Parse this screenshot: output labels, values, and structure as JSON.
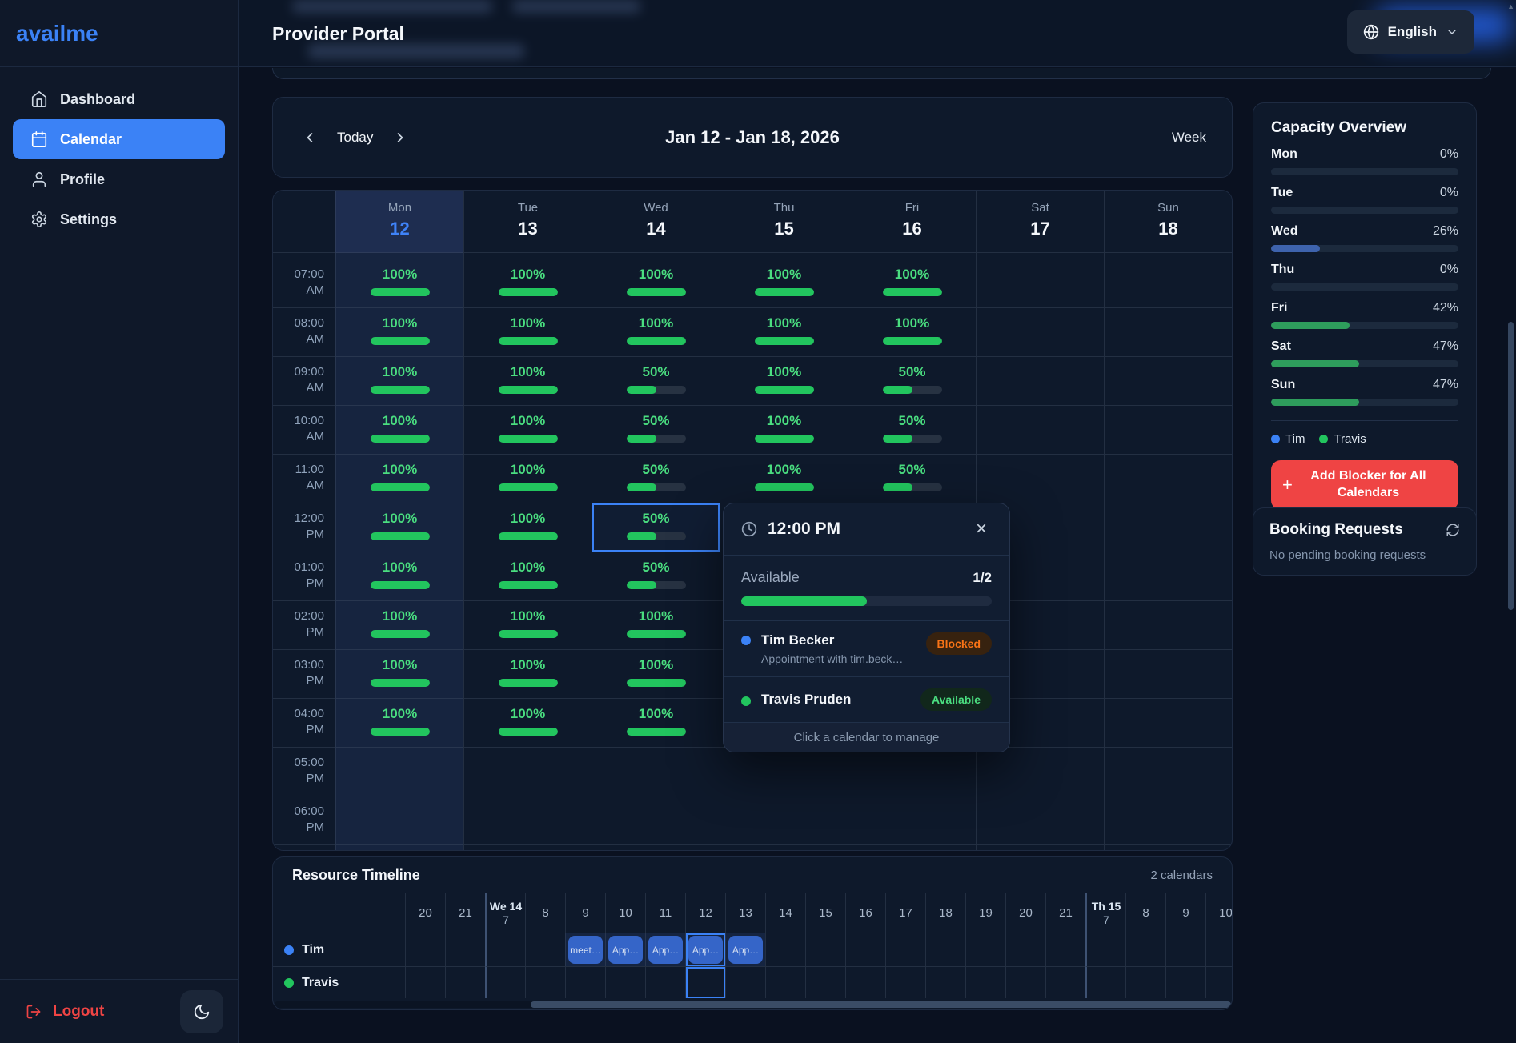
{
  "sidebar": {
    "logo": "availme",
    "items": [
      {
        "label": "Dashboard",
        "icon": "home",
        "active": false
      },
      {
        "label": "Calendar",
        "icon": "calendar",
        "active": true
      },
      {
        "label": "Profile",
        "icon": "user",
        "active": false
      },
      {
        "label": "Settings",
        "icon": "gear",
        "active": false
      }
    ],
    "logout_label": "Logout"
  },
  "header": {
    "title": "Provider Portal",
    "language": "English"
  },
  "toolbar": {
    "today_label": "Today",
    "range_title": "Jan 12 - Jan 18, 2026",
    "view_label": "Week"
  },
  "week": {
    "days": [
      {
        "name": "Mon",
        "num": "12",
        "today": true
      },
      {
        "name": "Tue",
        "num": "13",
        "today": false
      },
      {
        "name": "Wed",
        "num": "14",
        "today": false
      },
      {
        "name": "Thu",
        "num": "15",
        "today": false
      },
      {
        "name": "Fri",
        "num": "16",
        "today": false
      },
      {
        "name": "Sat",
        "num": "17",
        "today": false
      },
      {
        "name": "Sun",
        "num": "18",
        "today": false
      }
    ],
    "rows": [
      {
        "time": "07:00 AM",
        "values": [
          100,
          100,
          100,
          100,
          100,
          null,
          null
        ]
      },
      {
        "time": "08:00 AM",
        "values": [
          100,
          100,
          100,
          100,
          100,
          null,
          null
        ]
      },
      {
        "time": "09:00 AM",
        "values": [
          100,
          100,
          50,
          100,
          50,
          null,
          null
        ]
      },
      {
        "time": "10:00 AM",
        "values": [
          100,
          100,
          50,
          100,
          50,
          null,
          null
        ]
      },
      {
        "time": "11:00 AM",
        "values": [
          100,
          100,
          50,
          100,
          50,
          null,
          null
        ]
      },
      {
        "time": "12:00 PM",
        "values": [
          100,
          100,
          50,
          null,
          null,
          null,
          null
        ]
      },
      {
        "time": "01:00 PM",
        "values": [
          100,
          100,
          50,
          null,
          null,
          null,
          null
        ]
      },
      {
        "time": "02:00 PM",
        "values": [
          100,
          100,
          100,
          null,
          null,
          null,
          null
        ]
      },
      {
        "time": "03:00 PM",
        "values": [
          100,
          100,
          100,
          null,
          null,
          null,
          null
        ]
      },
      {
        "time": "04:00 PM",
        "values": [
          100,
          100,
          100,
          null,
          null,
          null,
          null
        ]
      },
      {
        "time": "05:00 PM",
        "values": [
          null,
          null,
          null,
          null,
          null,
          null,
          null
        ]
      },
      {
        "time": "06:00 PM",
        "values": [
          null,
          null,
          null,
          null,
          null,
          null,
          null
        ]
      },
      {
        "time": "07:00 PM",
        "values": [
          null,
          null,
          null,
          null,
          null,
          null,
          null
        ]
      }
    ],
    "selected": {
      "row": 5,
      "col": 2
    }
  },
  "popup": {
    "time": "12:00 PM",
    "available_label": "Available",
    "ratio": "1/2",
    "progress_pct": 50,
    "entries": [
      {
        "name": "Tim Becker",
        "note": "Appointment with tim.beck…",
        "badge": "Blocked",
        "status": "blocked",
        "dot_color": "#3b82f6"
      },
      {
        "name": "Travis Pruden",
        "note": "",
        "badge": "Available",
        "status": "available",
        "dot_color": "#22c55e"
      }
    ],
    "footer": "Click a calendar to manage"
  },
  "capacity": {
    "title": "Capacity Overview",
    "rows": [
      {
        "day": "Mon",
        "pct": "0%",
        "value": 0,
        "color": "green"
      },
      {
        "day": "Tue",
        "pct": "0%",
        "value": 0,
        "color": "green"
      },
      {
        "day": "Wed",
        "pct": "26%",
        "value": 26,
        "color": "blue"
      },
      {
        "day": "Thu",
        "pct": "0%",
        "value": 0,
        "color": "green"
      },
      {
        "day": "Fri",
        "pct": "42%",
        "value": 42,
        "color": "green"
      },
      {
        "day": "Sat",
        "pct": "47%",
        "value": 47,
        "color": "green"
      },
      {
        "day": "Sun",
        "pct": "47%",
        "value": 47,
        "color": "green"
      }
    ],
    "legend": [
      {
        "name": "Tim",
        "color": "#3b82f6"
      },
      {
        "name": "Travis",
        "color": "#22c55e"
      }
    ],
    "blocker_button": "Add Blocker for All Calendars"
  },
  "booking": {
    "title": "Booking Requests",
    "empty_text": "No pending booking requests"
  },
  "timeline": {
    "title": "Resource Timeline",
    "count_label": "2 calendars",
    "headers": [
      {
        "label": "20"
      },
      {
        "label": "21"
      },
      {
        "label": "We 14",
        "sub": "7",
        "day_start": true
      },
      {
        "label": "8"
      },
      {
        "label": "9"
      },
      {
        "label": "10"
      },
      {
        "label": "11"
      },
      {
        "label": "12"
      },
      {
        "label": "13"
      },
      {
        "label": "14"
      },
      {
        "label": "15"
      },
      {
        "label": "16"
      },
      {
        "label": "17"
      },
      {
        "label": "18"
      },
      {
        "label": "19"
      },
      {
        "label": "20"
      },
      {
        "label": "21"
      },
      {
        "label": "Th 15",
        "sub": "7",
        "day_start": true
      },
      {
        "label": "8"
      },
      {
        "label": "9"
      },
      {
        "label": "10"
      }
    ],
    "rows": [
      {
        "name": "Tim",
        "color": "#3b82f6",
        "events": [
          {
            "col": 4,
            "label": "meet…"
          },
          {
            "col": 5,
            "label": "App…"
          },
          {
            "col": 6,
            "label": "App…"
          },
          {
            "col": 7,
            "label": "App…"
          },
          {
            "col": 8,
            "label": "App…"
          }
        ]
      },
      {
        "name": "Travis",
        "color": "#22c55e",
        "events": []
      }
    ],
    "highlight_col": 7
  },
  "colors": {
    "accent": "#3b82f6",
    "green": "#22c55e",
    "red": "#ef4444",
    "capacity_green": "#2e9d5c",
    "capacity_blue": "#3e63ad",
    "chip_blue": "#3565c8"
  }
}
